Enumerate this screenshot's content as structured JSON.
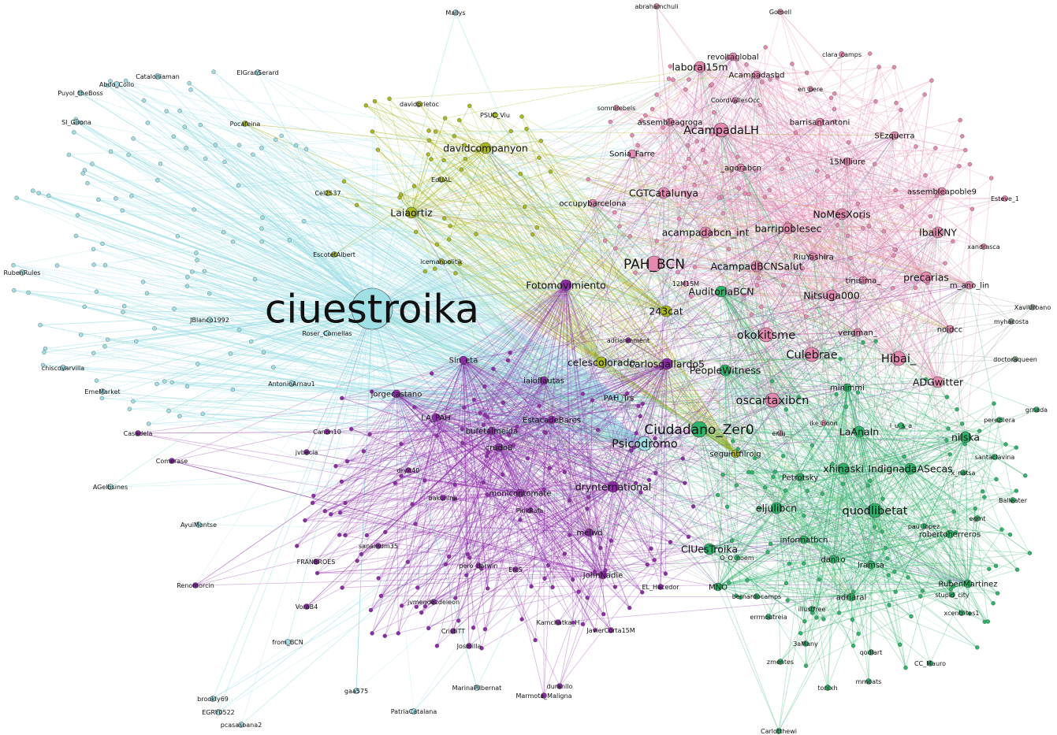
{
  "colors": {
    "pink": "#e48ab0",
    "olive": "#a8b81e",
    "cyan": "#9fdfe6",
    "purple": "#8e2ba8",
    "green": "#2db36a",
    "gray": "#8aa08c",
    "blue": "#6a77cc"
  },
  "nodes": [
    {
      "id": "ciuestroika",
      "label": "ciuestroika",
      "community": "cyan",
      "size": 8
    },
    {
      "id": "PAH_BCN",
      "label": "PAH_BCN",
      "community": "pink",
      "size": 5
    },
    {
      "id": "Ciudadano_Zer0",
      "label": "Ciudadano_Zer0",
      "community": "green",
      "size": 5
    },
    {
      "id": "Hibai_",
      "label": "Hibai_",
      "community": "pink",
      "size": 4
    },
    {
      "id": "AcampadaLH",
      "label": "AcampadaLH",
      "community": "pink",
      "size": 4
    },
    {
      "id": "Psicodromo",
      "label": "Psicodromo",
      "community": "cyan",
      "size": 4
    },
    {
      "id": "okokitsme",
      "label": "okokitsme",
      "community": "pink",
      "size": 4
    },
    {
      "id": "Culebrae",
      "label": "Culebrae",
      "community": "pink",
      "size": 4
    },
    {
      "id": "oscartaxibcn",
      "label": "oscartaxibcn",
      "community": "pink",
      "size": 4
    },
    {
      "id": "quodlibetat",
      "label": "quodlibetat",
      "community": "green",
      "size": 4
    },
    {
      "id": "AcampadBCNSalut",
      "label": "AcampadBCNSalut",
      "community": "pink",
      "size": 3
    },
    {
      "id": "Fotomovimiento",
      "label": "Fotomovimiento",
      "community": "purple",
      "size": 3
    },
    {
      "id": "celescolorado",
      "label": "celescolorado",
      "community": "olive",
      "size": 3
    },
    {
      "id": "drynternational",
      "label": "drynternational",
      "community": "purple",
      "size": 3
    },
    {
      "id": "ADGwitter",
      "label": "ADGwitter",
      "community": "pink",
      "size": 3
    },
    {
      "id": "CGTCatalunya",
      "label": "CGTCatalunya",
      "community": "pink",
      "size": 3
    },
    {
      "id": "acampadabcn_int",
      "label": "acampadabcn_int",
      "community": "pink",
      "size": 3
    },
    {
      "id": "barripoblesec",
      "label": "barripoblesec",
      "community": "pink",
      "size": 3
    },
    {
      "id": "NoMesXoris",
      "label": "NoMesXoris",
      "community": "pink",
      "size": 3
    },
    {
      "id": "IbaiKNY",
      "label": "IbaiKNY",
      "community": "pink",
      "size": 3
    },
    {
      "id": "Nitsuga000",
      "label": "Nitsuga000",
      "community": "pink",
      "size": 3
    },
    {
      "id": "precarias",
      "label": "precarias",
      "community": "pink",
      "size": 3
    },
    {
      "id": "AuditoriaBCN",
      "label": "AuditoriaBCN",
      "community": "green",
      "size": 3
    },
    {
      "id": "PeopleWitness",
      "label": "PeopleWitness",
      "community": "green",
      "size": 3
    },
    {
      "id": "carlosgallardo5",
      "label": "carlosgallardo5",
      "community": "purple",
      "size": 3
    },
    {
      "id": "IndignadaASecas",
      "label": "IndignadaASecas",
      "community": "green",
      "size": 3
    },
    {
      "id": "xhinaski",
      "label": "xhinaski",
      "community": "green",
      "size": 3
    },
    {
      "id": "nilska",
      "label": "nilska",
      "community": "green",
      "size": 3
    },
    {
      "id": "LaAnaIn",
      "label": "LaAnaIn",
      "community": "green",
      "size": 3
    },
    {
      "id": "ClUesTroika",
      "label": "ClUesTroika",
      "community": "green",
      "size": 3
    },
    {
      "id": "eljulibcn",
      "label": "eljulibcn",
      "community": "green",
      "size": 3
    },
    {
      "id": "Petrotsky",
      "label": "Petrotsky",
      "community": "green",
      "size": 2
    },
    {
      "id": "robertoherreros",
      "label": "robertoherreros",
      "community": "green",
      "size": 2
    },
    {
      "id": "243cat",
      "label": "243cat",
      "community": "olive",
      "size": 3
    },
    {
      "id": "Laiaortiz",
      "label": "Laiaortiz",
      "community": "olive",
      "size": 3
    },
    {
      "id": "davidcompanyon",
      "label": "davidcompanyon",
      "community": "olive",
      "size": 3
    },
    {
      "id": "laboral15m",
      "label": "laboral15m",
      "community": "pink",
      "size": 3
    },
    {
      "id": "revoltaglobal",
      "label": "revoltaglobal",
      "community": "pink",
      "size": 2
    },
    {
      "id": "barrisantantoni",
      "label": "barrisantantoni",
      "community": "pink",
      "size": 2
    },
    {
      "id": "SEzquerra",
      "label": "SEzquerra",
      "community": "pink",
      "size": 2
    },
    {
      "id": "15Mlliure",
      "label": "15Mlliure",
      "community": "pink",
      "size": 2
    },
    {
      "id": "assembleapoble9",
      "label": "assembleapoble9",
      "community": "pink",
      "size": 2
    },
    {
      "id": "assembleagroga",
      "label": "assembleagroga",
      "community": "pink",
      "size": 2
    },
    {
      "id": "Sonia_Farre",
      "label": "Sonia_Farre",
      "community": "pink",
      "size": 2
    },
    {
      "id": "_agorabcn",
      "label": "_agorabcn",
      "community": "pink",
      "size": 2
    },
    {
      "id": "Acampadasbd",
      "label": "Acampadasbd",
      "community": "pink",
      "size": 2
    },
    {
      "id": "occupybarcelona",
      "label": "occupybarcelona",
      "community": "pink",
      "size": 2
    },
    {
      "id": "tinisima_",
      "label": "tinisima_",
      "community": "pink",
      "size": 2
    },
    {
      "id": "m_ano_lin",
      "label": "m_ano_lin",
      "community": "pink",
      "size": 2
    },
    {
      "id": "noidcc",
      "label": "noidcc",
      "community": "pink",
      "size": 2
    },
    {
      "id": "vergman_",
      "label": "vergman_",
      "community": "pink",
      "size": 2
    },
    {
      "id": "RiuYashira",
      "label": "RiuYashira",
      "community": "pink",
      "size": 2
    },
    {
      "id": "Esteve_1",
      "label": "Esteve_1",
      "community": "pink",
      "size": 1
    },
    {
      "id": "XaviUrbano",
      "label": "XaviUrbano",
      "community": "gray",
      "size": 1
    },
    {
      "id": "seguintfilroig",
      "label": "seguintfilroig",
      "community": "olive",
      "size": 2
    },
    {
      "id": "minimmi",
      "label": "minimmi",
      "community": "green",
      "size": 2
    },
    {
      "id": "informatbcn",
      "label": "informatbcn",
      "community": "green",
      "size": 2
    },
    {
      "id": "dan1o",
      "label": "dan1o",
      "community": "green",
      "size": 2
    },
    {
      "id": "lramsa",
      "label": "lramsa",
      "community": "green",
      "size": 2
    },
    {
      "id": "adriaral",
      "label": "adriaral",
      "community": "green",
      "size": 2
    },
    {
      "id": "RubenMartinez",
      "label": "RubenMartinez",
      "community": "green",
      "size": 2
    },
    {
      "id": "zmentes",
      "label": "zmentes",
      "community": "green",
      "size": 1
    },
    {
      "id": "CC_Mauro",
      "label": "CC_Mauro",
      "community": "green",
      "size": 1
    },
    {
      "id": "tonixh",
      "label": "tonixh",
      "community": "green",
      "size": 1
    },
    {
      "id": "MNO",
      "label": "MNO",
      "community": "green",
      "size": 2
    },
    {
      "id": "crudo8",
      "label": "crudo8",
      "community": "purple",
      "size": 2
    },
    {
      "id": "monicontomate",
      "label": "monicontomate",
      "community": "purple",
      "size": 2
    },
    {
      "id": "melwd",
      "label": "melwd",
      "community": "purple",
      "size": 2
    },
    {
      "id": "JohnNadie",
      "label": "JohnNadie",
      "community": "purple",
      "size": 2
    },
    {
      "id": "EstacadeBares",
      "label": "EstacadeBares",
      "community": "purple",
      "size": 2
    },
    {
      "id": "bufetalmeida",
      "label": "bufetalmeida",
      "community": "purple",
      "size": 2
    },
    {
      "id": "LA_PAH",
      "label": "LA_PAH",
      "community": "purple",
      "size": 2
    },
    {
      "id": "jorgecastano",
      "label": "jorgecastano",
      "community": "purple",
      "size": 2
    },
    {
      "id": "Sin_eta",
      "label": "Sin_eta",
      "community": "purple",
      "size": 2
    },
    {
      "id": "iaioflautas",
      "label": "iaioflautas",
      "community": "purple",
      "size": 2
    },
    {
      "id": "jvbecia",
      "label": "jvbecia",
      "community": "purple",
      "size": 1
    },
    {
      "id": "PinkRafa",
      "label": "PinkRafa",
      "community": "purple",
      "size": 1
    },
    {
      "id": "bakunina",
      "label": "bakunina",
      "community": "purple",
      "size": 1
    },
    {
      "id": "jvmendezdeleon",
      "label": "jvmendezdeleon",
      "community": "purple",
      "size": 1
    },
    {
      "id": "Kamchatka_H",
      "label": "Kamchatka_H",
      "community": "purple",
      "size": 1
    },
    {
      "id": "Canon10",
      "label": "Canon10",
      "community": "purple",
      "size": 1
    },
    {
      "id": "dryit40",
      "label": "dryit40",
      "community": "purple",
      "size": 1
    },
    {
      "id": "FRANBROES",
      "label": "FRANBROES",
      "community": "purple",
      "size": 1
    },
    {
      "id": "Renomorcin",
      "label": "Renomorcin",
      "community": "purple",
      "size": 1
    },
    {
      "id": "VoraB4",
      "label": "VoraB4",
      "community": "purple",
      "size": 1
    },
    {
      "id": "CristiTT",
      "label": "CristiTT",
      "community": "purple",
      "size": 1
    },
    {
      "id": "Marmota_Maligna",
      "label": "Marmota_Maligna",
      "community": "purple",
      "size": 1
    },
    {
      "id": "EL_Hacedor",
      "label": "EL_Hacedor",
      "community": "purple",
      "size": 1
    },
    {
      "id": "PAH_Trs",
      "label": "PAH_Trs",
      "community": "cyan",
      "size": 2
    },
    {
      "id": "adrianmment",
      "label": "adrianmment",
      "community": "purple",
      "size": 1
    },
    {
      "id": "12M15M",
      "label": "12M15M",
      "community": "pink",
      "size": 1
    },
    {
      "id": "icemanpolitik",
      "label": "icemanpolitik",
      "community": "olive",
      "size": 1
    },
    {
      "id": "EscotetAlbert",
      "label": "EscotetAlbert",
      "community": "olive",
      "size": 1
    },
    {
      "id": "PSUC_Viu",
      "label": "PSUC_Viu",
      "community": "olive",
      "size": 1
    },
    {
      "id": "Cataloniaman",
      "label": "Cataloniaman",
      "community": "cyan",
      "size": 1
    },
    {
      "id": "ElGranSerard",
      "label": "ElGranSerard",
      "community": "cyan",
      "size": 1
    },
    {
      "id": "JBlanco1992",
      "label": "JBlanco1992",
      "community": "cyan",
      "size": 1
    },
    {
      "id": "Roser_Comellas",
      "label": "Roser_Comellas",
      "community": "cyan",
      "size": 1
    },
    {
      "id": "AntonioArnau1",
      "label": "AntonioArnau1",
      "community": "cyan",
      "size": 1
    },
    {
      "id": "Casadela",
      "label": "Casadela",
      "community": "purple",
      "size": 1
    },
    {
      "id": "Comerase",
      "label": "Comerase",
      "community": "purple",
      "size": 1
    },
    {
      "id": "AGelbsines",
      "label": "AGelbsines",
      "community": "cyan",
      "size": 1
    },
    {
      "id": "AyuiMontse",
      "label": "AyuiMontse",
      "community": "cyan",
      "size": 1
    },
    {
      "id": "EmeMarket",
      "label": "EmeMarket",
      "community": "cyan",
      "size": 1
    },
    {
      "id": "chiscovarvilla",
      "label": "chiscovarvilla",
      "community": "cyan",
      "size": 1
    },
    {
      "id": "gaa575",
      "label": "gaa575",
      "community": "cyan",
      "size": 1
    },
    {
      "id": "PatriaCatalana",
      "label": "PatriaCatalana",
      "community": "cyan",
      "size": 1
    },
    {
      "id": "MarinaPilbernat",
      "label": "MarinaPilbernat",
      "community": "cyan",
      "size": 1
    },
    {
      "id": "from_BCN",
      "label": "from_BCN",
      "community": "cyan",
      "size": 1
    },
    {
      "id": "brookly69",
      "label": "brookly69",
      "community": "cyan",
      "size": 1
    },
    {
      "id": "EGRY0522",
      "label": "EGRY0522",
      "community": "cyan",
      "size": 1
    },
    {
      "id": "pcasasoana2",
      "label": "pcasasoana2",
      "community": "cyan",
      "size": 1
    },
    {
      "id": "Carlotthewi",
      "label": "Carlotthewi",
      "community": "green",
      "size": 1
    },
    {
      "id": "santaclavina",
      "label": "santaclavina",
      "community": "green",
      "size": 1
    },
    {
      "id": "Balleater",
      "label": "Balleater",
      "community": "green",
      "size": 1
    },
    {
      "id": "perezllera",
      "label": "perezllera",
      "community": "green",
      "size": 1
    },
    {
      "id": "grnada",
      "label": "grnada",
      "community": "green",
      "size": 1
    },
    {
      "id": "stupid_city",
      "label": "stupid_city",
      "community": "green",
      "size": 1
    },
    {
      "id": "xcentrites1",
      "label": "xcentrites1",
      "community": "green",
      "size": 1
    },
    {
      "id": "Gomell",
      "label": "Gomell",
      "community": "pink",
      "size": 1
    },
    {
      "id": "abrahamchuli",
      "label": "abrahamchuli",
      "community": "pink",
      "size": 1
    },
    {
      "id": "Mallys",
      "label": "Mallys",
      "community": "cyan",
      "size": 1
    },
    {
      "id": "davidprietoc",
      "label": "davidprietoc",
      "community": "olive",
      "size": 1
    },
    {
      "id": "EdUAL",
      "label": "EdUAL",
      "community": "olive",
      "size": 1
    },
    {
      "id": "Abdo_Collo",
      "label": "Abdo_Collo",
      "community": "cyan",
      "size": 1
    },
    {
      "id": "Puyol_theBoss",
      "label": "Puyol_theBoss",
      "community": "cyan",
      "size": 1
    },
    {
      "id": "SI_Girona",
      "label": "SI_Girona",
      "community": "cyan",
      "size": 1
    },
    {
      "id": "RubenRules",
      "label": "RubenRules",
      "community": "cyan",
      "size": 1
    },
    {
      "id": "Cel2537",
      "label": "Cel2537",
      "community": "olive",
      "size": 1
    },
    {
      "id": "Pocafeina",
      "label": "Pocafeina",
      "community": "olive",
      "size": 1
    },
    {
      "id": "sanamdm35",
      "label": "sanamdm35",
      "community": "purple",
      "size": 1
    },
    {
      "id": "pero_darwin",
      "label": "pero_darwin",
      "community": "purple",
      "size": 1
    },
    {
      "id": "ErcS",
      "label": "ErcS",
      "community": "purple",
      "size": 1
    },
    {
      "id": "JavierCorta15M",
      "label": "JavierCorta15M",
      "community": "purple",
      "size": 1
    },
    {
      "id": "Josmilla",
      "label": "Josmilla",
      "community": "purple",
      "size": 1
    },
    {
      "id": "duranllo",
      "label": "duranllo",
      "community": "purple",
      "size": 1
    },
    {
      "id": "en_pere",
      "label": "en_pere",
      "community": "pink",
      "size": 1
    },
    {
      "id": "somnirebels",
      "label": "somnirebels",
      "community": "pink",
      "size": 1
    },
    {
      "id": "CoordVallesOcc",
      "label": "CoordVallesOcc",
      "community": "pink",
      "size": 1
    },
    {
      "id": "clara_camps",
      "label": "clara_camps",
      "community": "pink",
      "size": 1
    },
    {
      "id": "xandrasca",
      "label": "xandrasca",
      "community": "pink",
      "size": 1
    },
    {
      "id": "illustfree",
      "label": "illustfree",
      "community": "green",
      "size": 1
    },
    {
      "id": "3aMany",
      "label": "3aMany",
      "community": "green",
      "size": 1
    },
    {
      "id": "qodlart",
      "label": "qodlart",
      "community": "green",
      "size": 1
    },
    {
      "id": "mmoats",
      "label": "mmoats",
      "community": "green",
      "size": 1
    },
    {
      "id": "pau_lopez",
      "label": "pau_lopez",
      "community": "green",
      "size": 1
    },
    {
      "id": "egmt",
      "label": "egmt",
      "community": "green",
      "size": 1
    },
    {
      "id": "x_natsa",
      "label": "x_natsa",
      "community": "green",
      "size": 1
    },
    {
      "id": "O_O_noem",
      "label": "O_O_noem",
      "community": "green",
      "size": 1
    },
    {
      "id": "bernardocamps",
      "label": "bernardocamps",
      "community": "green",
      "size": 1
    },
    {
      "id": "errmoutreia",
      "label": "errmoutreia",
      "community": "green",
      "size": 1
    },
    {
      "id": "enlu_",
      "label": "enlu_",
      "community": "pink",
      "size": 1
    },
    {
      "id": "ike_noon",
      "label": "ike_noon",
      "community": "pink",
      "size": 1
    },
    {
      "id": "l_u_s_a",
      "label": "l_u_s_a",
      "community": "green",
      "size": 1
    },
    {
      "id": "doctoraqueen",
      "label": "doctoraqueen",
      "community": "gray",
      "size": 1
    },
    {
      "id": "myhacosta",
      "label": "myhacosta",
      "community": "gray",
      "size": 1
    }
  ]
}
